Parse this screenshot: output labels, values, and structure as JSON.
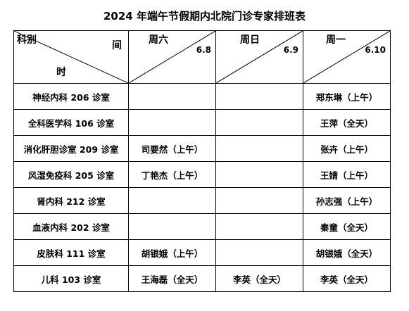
{
  "title": "2024 年端午节假期内北院门诊专家排班表",
  "header": {
    "corner_top": "科别",
    "corner_mid": "间",
    "corner_bottom": "时",
    "days": [
      {
        "name": "周六",
        "date": "6.8"
      },
      {
        "name": "周日",
        "date": "6.9"
      },
      {
        "name": "周一",
        "date": "6.10"
      }
    ]
  },
  "rows": [
    {
      "dept": "神经内科 206 诊室",
      "sat": "",
      "sun": "",
      "mon": "郑东琳（上午）"
    },
    {
      "dept": "全科医学科 106 诊室",
      "sat": "",
      "sun": "",
      "mon": "王萍（全天）"
    },
    {
      "dept": "消化肝胆诊室 209 诊室",
      "sat": "司要然（上午）",
      "sun": "",
      "mon": "张卉（上午）"
    },
    {
      "dept": "风湿免疫科 205 诊室",
      "sat": "丁艳杰（上午）",
      "sun": "",
      "mon": "王婧（上午）"
    },
    {
      "dept": "肾内科 212 诊室",
      "sat": "",
      "sun": "",
      "mon": "孙志强（上午）"
    },
    {
      "dept": "血液内科 202 诊室",
      "sat": "",
      "sun": "",
      "mon": "秦童（全天）"
    },
    {
      "dept": "皮肤科 111 诊室",
      "sat": "胡银娥（上午）",
      "sun": "",
      "mon": "胡银娥（全天）"
    },
    {
      "dept": "儿科 103 诊室",
      "sat": "王海磊（全天）",
      "sun": "李英（全天）",
      "mon": "李英（全天）"
    }
  ]
}
